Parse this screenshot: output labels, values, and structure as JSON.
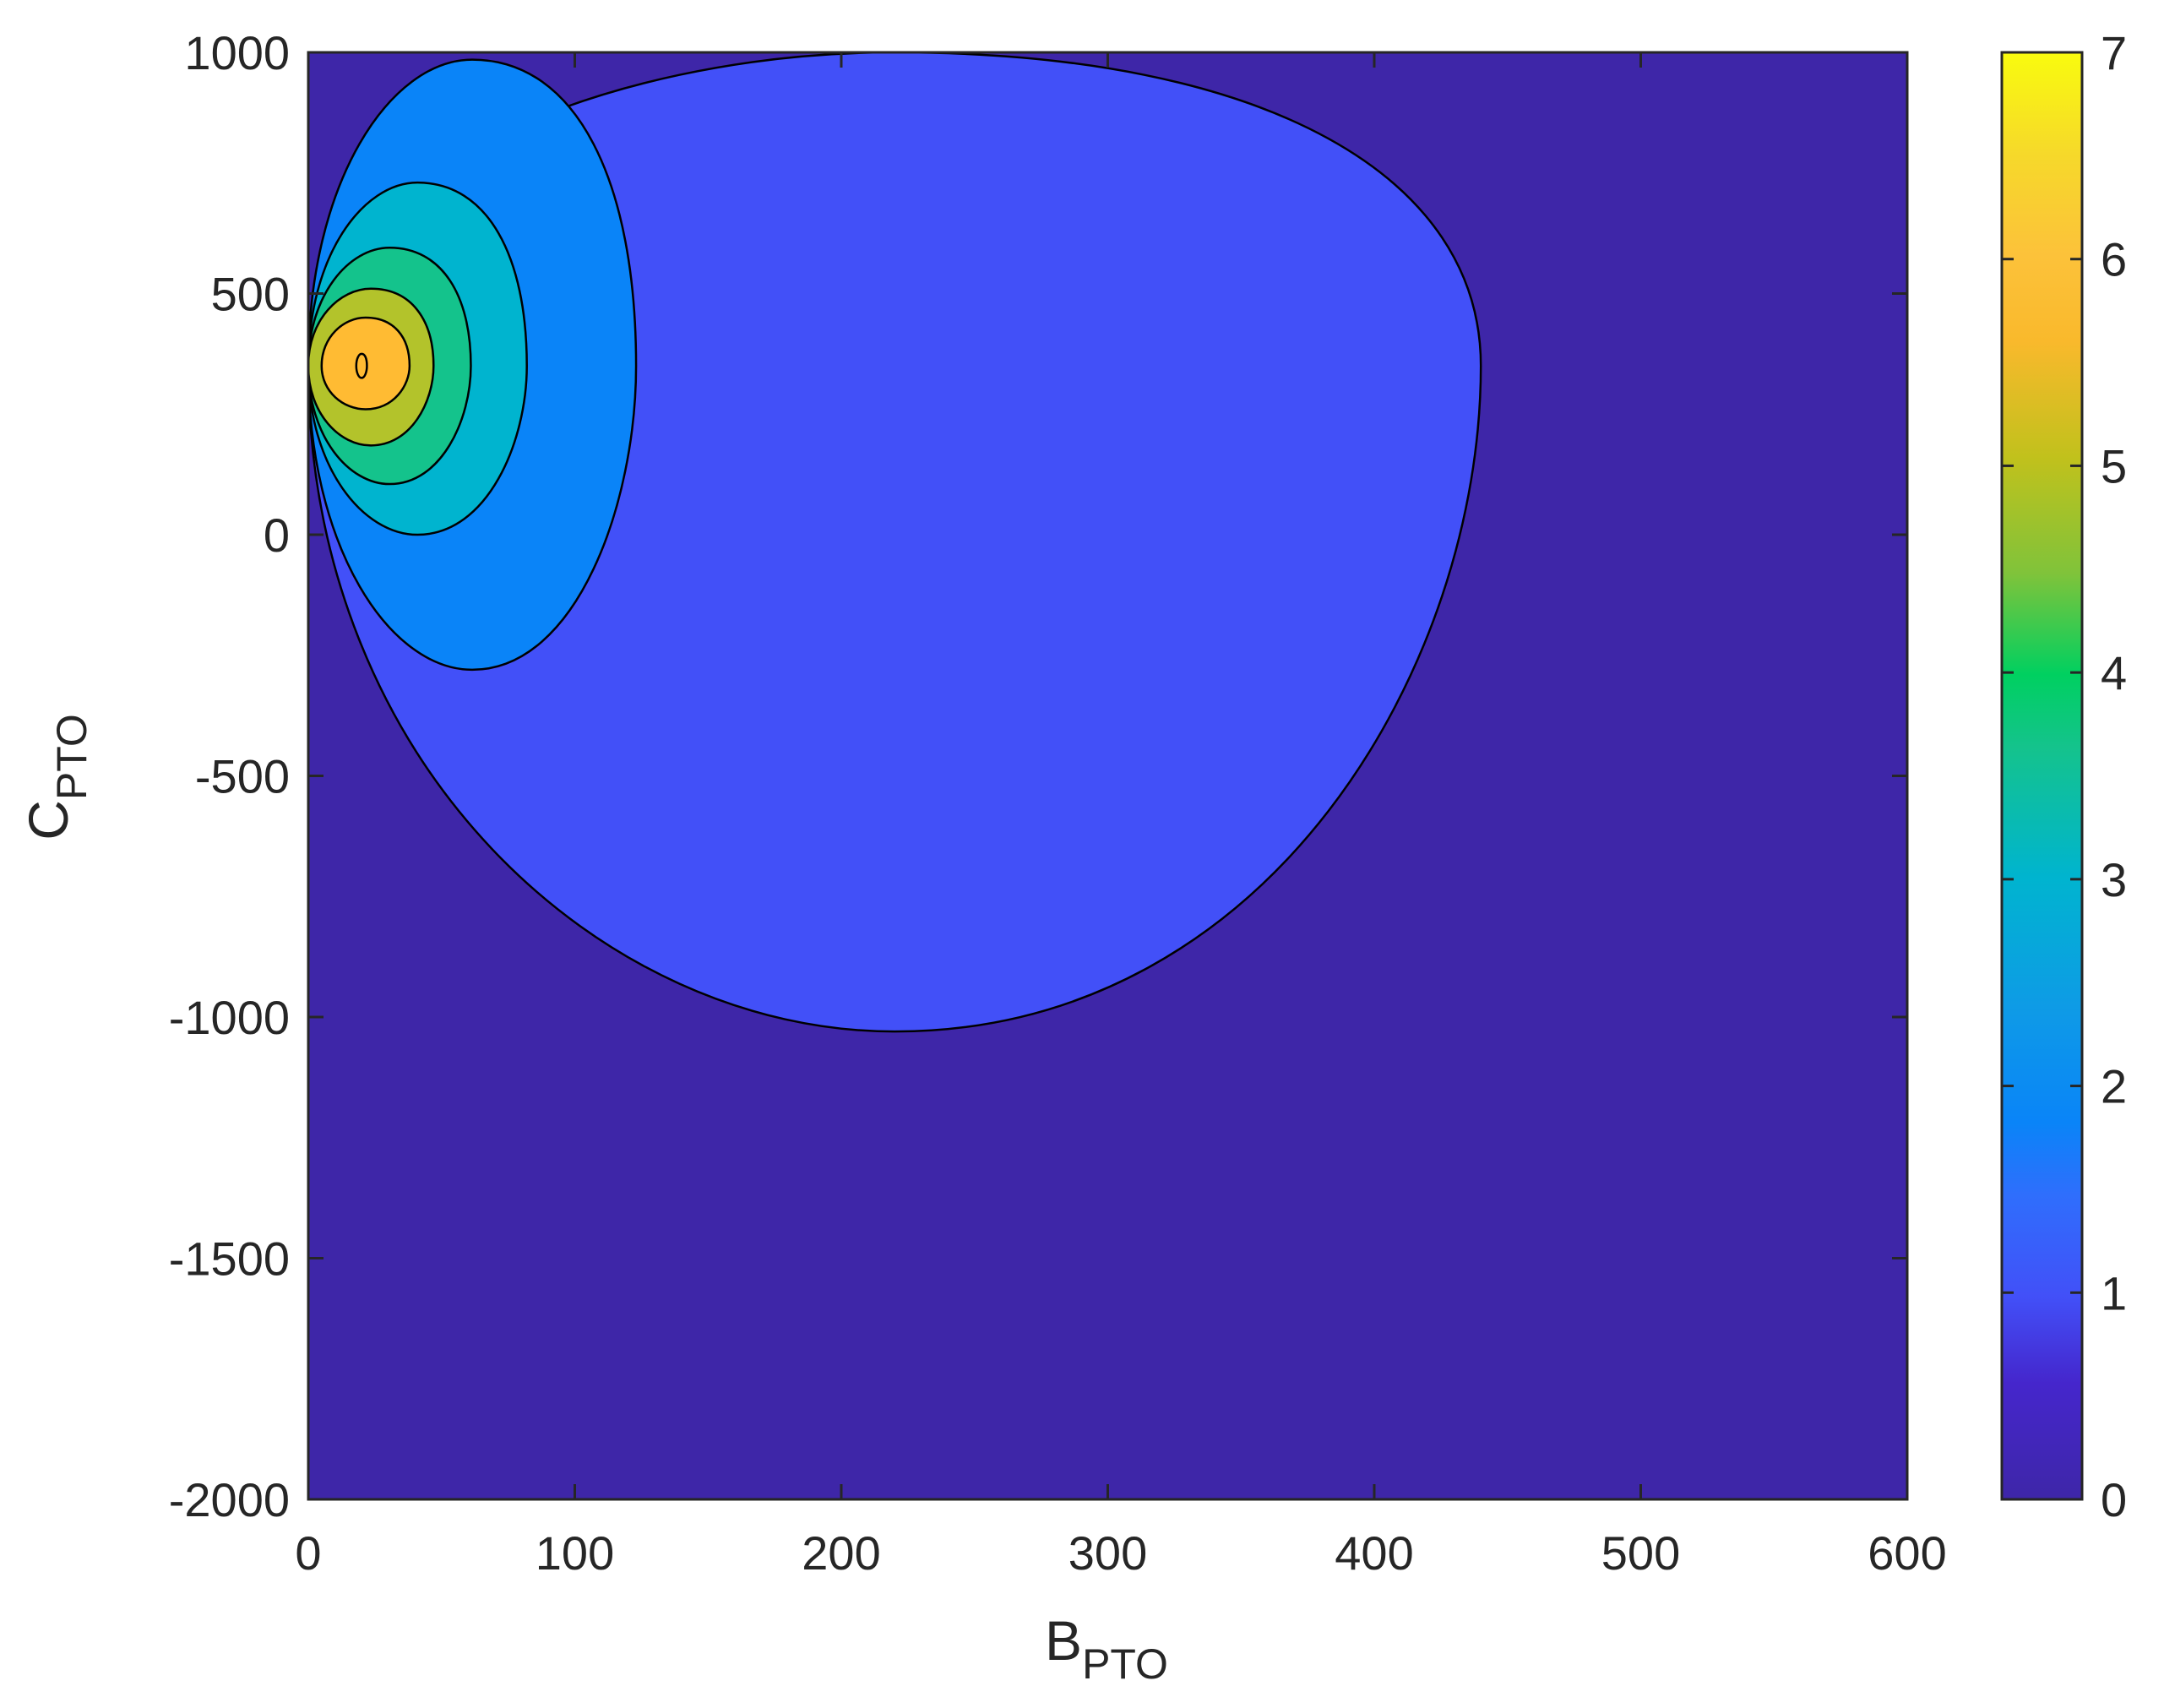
{
  "chart_data": {
    "type": "contourf",
    "xlabel": {
      "main": "B",
      "sub": "PTO"
    },
    "ylabel": {
      "main": "C",
      "sub": "PTO"
    },
    "xlim": [
      0,
      600
    ],
    "ylim": [
      -2000,
      1000
    ],
    "xticks": [
      0,
      100,
      200,
      300,
      400,
      500,
      600
    ],
    "yticks": [
      -2000,
      -1500,
      -1000,
      -500,
      0,
      500,
      1000
    ],
    "colorbar": {
      "range": [
        0,
        7
      ],
      "ticks": [
        0,
        1,
        2,
        3,
        4,
        5,
        6,
        7
      ],
      "bands": [
        {
          "from": 0,
          "to": 0.5,
          "color": "#3e26a8"
        },
        {
          "from": 0.5,
          "to": 1.5,
          "color": "#4250f8"
        },
        {
          "from": 1.5,
          "to": 2.5,
          "color": "#0a84f8"
        },
        {
          "from": 2.5,
          "to": 3.5,
          "color": "#00b4cf"
        },
        {
          "from": 3.5,
          "to": 4.5,
          "color": "#14c38c"
        },
        {
          "from": 4.5,
          "to": 5.5,
          "color": "#b3c32b"
        },
        {
          "from": 5.5,
          "to": 6.5,
          "color": "#ffbb33"
        },
        {
          "from": 6.5,
          "to": 7,
          "color": "#f9f90f"
        }
      ]
    },
    "contours": [
      {
        "level": 1,
        "fill": "#4250f8",
        "left": 0,
        "right": 440,
        "top": 1000,
        "bottom": -1030,
        "center_y": 350
      },
      {
        "level": 2,
        "fill": "#0a84f8",
        "left": 0,
        "right": 123,
        "top": 985,
        "bottom": -280,
        "center_y": 350
      },
      {
        "level": 3,
        "fill": "#00b4cf",
        "left": 0,
        "right": 82,
        "top": 730,
        "bottom": 0,
        "center_y": 350
      },
      {
        "level": 4,
        "fill": "#14c38c",
        "left": 0,
        "right": 61,
        "top": 595,
        "bottom": 105,
        "center_y": 350
      },
      {
        "level": 5,
        "fill": "#b3c32b",
        "left": 0,
        "right": 47,
        "top": 510,
        "bottom": 185,
        "center_y": 350
      },
      {
        "level": 6,
        "fill": "#ffbb33",
        "left": 5,
        "right": 38,
        "top": 450,
        "bottom": 260,
        "center_y": 350
      },
      {
        "level": 7,
        "fill": "#ffbb33",
        "left": 18,
        "right": 22,
        "top": 375,
        "bottom": 325,
        "center_y": 350
      }
    ],
    "background_color": "#3e26a8"
  }
}
